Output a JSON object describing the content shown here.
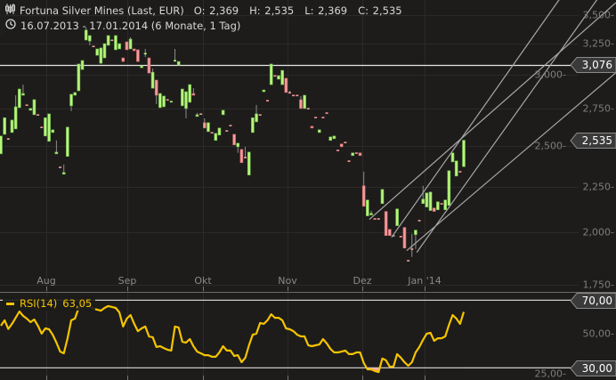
{
  "header": {
    "title": "Fortuna Silver Mines (Last, EUR)",
    "ohlc": [
      {
        "label": "O:",
        "value": "2,369"
      },
      {
        "label": "H:",
        "value": "2,535"
      },
      {
        "label": "L:",
        "value": "2,369"
      },
      {
        "label": "C:",
        "value": "2,535"
      }
    ],
    "range": "16.07.2013 - 17.01.2014 (6 Monate, 1 Tag)",
    "chart_icon": "candlestick-chart-icon",
    "time_icon": "clock-icon"
  },
  "price_axis": {
    "scale": "log",
    "ticks": [
      "3,500",
      "3,250",
      "3,000",
      "2,750",
      "2,500",
      "2,250",
      "2,000",
      "1,750"
    ],
    "reference_line": "3,076",
    "last_price": "2,535"
  },
  "x_axis": {
    "labels": [
      "Aug",
      "Sep",
      "Okt",
      "Nov",
      "Dez",
      "Jan '14"
    ]
  },
  "rsi": {
    "label": "RSI(14)",
    "value": "63,05",
    "ticks": [
      "50,00",
      "25,00"
    ],
    "upper": "70,00",
    "lower": "30,00"
  },
  "colors": {
    "background": "#1d1c1b",
    "up": "#b7f57d",
    "up_border": "#6fb84a",
    "down": "#f69a9a",
    "down_border": "#c56464",
    "rsi": "#f5c400",
    "oversold_fill": "#f0a8a8",
    "trendline": "#a8a8a8",
    "reference_line": "#e6e6e6"
  },
  "chart_data": {
    "type": "candlestick",
    "yscale": "log",
    "ylim": [
      1.7,
      3.6
    ],
    "grid": true,
    "ohlc": [
      [
        2.448,
        2.563,
        2.448,
        2.563
      ],
      [
        2.574,
        2.686,
        2.574,
        2.686
      ],
      [
        2.545,
        2.545,
        2.545,
        2.545
      ],
      [
        2.586,
        2.67,
        2.586,
        2.67
      ],
      [
        2.61,
        2.846,
        2.61,
        2.763
      ],
      [
        2.757,
        2.892,
        2.757,
        2.892
      ],
      [
        2.846,
        2.925,
        2.846,
        2.859
      ],
      [
        2.776,
        2.776,
        2.776,
        2.776
      ],
      [
        2.738,
        2.751,
        2.738,
        2.751
      ],
      [
        2.707,
        2.814,
        2.707,
        2.814
      ],
      [
        2.707,
        2.707,
        2.707,
        2.707
      ],
      [
        2.622,
        2.622,
        2.622,
        2.622
      ],
      [
        2.563,
        2.686,
        2.563,
        2.686
      ],
      [
        2.528,
        2.713,
        2.528,
        2.713
      ],
      [
        2.586,
        2.604,
        2.586,
        2.604
      ],
      [
        2.448,
        2.534,
        2.448,
        2.459
      ],
      [
        2.366,
        2.366,
        2.366,
        2.366
      ],
      [
        2.323,
        2.382,
        2.323,
        2.333
      ],
      [
        2.432,
        2.622,
        2.432,
        2.622
      ],
      [
        2.77,
        2.853,
        2.732,
        2.853
      ],
      [
        2.846,
        2.866,
        2.846,
        2.866
      ],
      [
        2.879,
        3.084,
        2.879,
        3.084
      ],
      [
        3.041,
        3.112,
        3.041,
        3.112
      ],
      [
        3.28,
        3.39,
        3.28,
        3.365
      ],
      [
        3.272,
        3.318,
        3.236,
        3.318
      ],
      [
        3.229,
        3.229,
        3.229,
        3.229
      ],
      [
        3.154,
        3.206,
        3.154,
        3.206
      ],
      [
        3.09,
        3.214,
        3.09,
        3.214
      ],
      [
        3.133,
        3.25,
        3.133,
        3.25
      ],
      [
        3.236,
        3.318,
        3.236,
        3.318
      ],
      [
        3.28,
        3.28,
        3.28,
        3.28
      ],
      [
        3.199,
        3.318,
        3.199,
        3.318
      ],
      [
        3.206,
        3.25,
        3.206,
        3.25
      ],
      [
        3.133,
        3.133,
        3.104,
        3.104
      ],
      [
        3.265,
        3.265,
        3.199,
        3.199
      ],
      [
        3.206,
        3.303,
        3.206,
        3.288
      ],
      [
        3.206,
        3.206,
        3.191,
        3.191
      ],
      [
        3.199,
        3.199,
        3.104,
        3.104
      ],
      [
        3.055,
        3.069,
        3.055,
        3.069
      ],
      [
        3.165,
        3.206,
        3.14,
        3.169
      ],
      [
        3.133,
        3.133,
        3.013,
        3.013
      ],
      [
        2.898,
        3.048,
        2.898,
        3.02
      ],
      [
        2.959,
        2.959,
        2.782,
        2.846
      ],
      [
        2.757,
        2.859,
        2.757,
        2.859
      ],
      [
        2.763,
        2.84,
        2.763,
        2.84
      ],
      [
        2.814,
        2.814,
        2.814,
        2.814
      ],
      [
        2.795,
        2.801,
        2.795,
        2.801
      ],
      [
        3.104,
        3.206,
        3.104,
        3.112
      ],
      [
        3.076,
        3.104,
        3.076,
        3.104
      ],
      [
        2.77,
        2.892,
        2.77,
        2.892
      ],
      [
        2.751,
        2.872,
        2.682,
        2.872
      ],
      [
        2.795,
        2.925,
        2.795,
        2.925
      ],
      [
        2.859,
        2.899,
        2.846,
        2.846
      ],
      [
        2.695,
        2.72,
        2.695,
        2.707
      ],
      [
        2.713,
        2.713,
        2.713,
        2.713
      ],
      [
        2.652,
        2.682,
        2.616,
        2.616
      ],
      [
        2.592,
        2.652,
        2.592,
        2.652
      ],
      [
        2.586,
        2.586,
        2.586,
        2.586
      ],
      [
        2.534,
        2.58,
        2.534,
        2.58
      ],
      [
        2.569,
        2.616,
        2.569,
        2.616
      ],
      [
        2.707,
        2.738,
        2.707,
        2.738
      ],
      [
        2.598,
        2.598,
        2.598,
        2.598
      ],
      [
        2.634,
        2.634,
        2.634,
        2.634
      ],
      [
        2.574,
        2.574,
        2.505,
        2.505
      ],
      [
        2.493,
        2.516,
        2.454,
        2.516
      ],
      [
        2.476,
        2.476,
        2.393,
        2.393
      ],
      [
        2.426,
        2.493,
        2.42,
        2.426
      ],
      [
        2.318,
        2.459,
        2.318,
        2.459
      ],
      [
        2.586,
        2.686,
        2.586,
        2.686
      ],
      [
        2.658,
        2.776,
        2.658,
        2.713
      ],
      [
        2.707,
        2.707,
        2.707,
        2.707
      ],
      [
        2.872,
        2.885,
        2.872,
        2.885
      ],
      [
        2.808,
        2.808,
        2.808,
        2.808
      ],
      [
        2.925,
        3.084,
        2.925,
        3.084
      ],
      [
        2.993,
        2.993,
        2.993,
        2.993
      ],
      [
        2.966,
        2.993,
        2.966,
        2.993
      ],
      [
        2.925,
        3.034,
        2.925,
        3.034
      ],
      [
        2.973,
        2.973,
        2.866,
        2.866
      ],
      [
        2.866,
        2.879,
        2.866,
        2.866
      ],
      [
        2.846,
        2.846,
        2.846,
        2.846
      ],
      [
        2.846,
        2.846,
        2.846,
        2.846
      ],
      [
        2.814,
        2.84,
        2.751,
        2.751
      ],
      [
        2.751,
        2.846,
        2.751,
        2.846
      ],
      [
        2.751,
        2.751,
        2.751,
        2.751
      ],
      [
        2.628,
        2.628,
        2.616,
        2.616
      ],
      [
        2.689,
        2.689,
        2.689,
        2.689
      ],
      [
        2.586,
        2.604,
        2.586,
        2.604
      ],
      [
        2.689,
        2.689,
        2.689,
        2.689
      ],
      [
        2.72,
        2.72,
        2.72,
        2.72
      ],
      [
        2.534,
        2.557,
        2.534,
        2.557
      ],
      [
        2.545,
        2.563,
        2.545,
        2.563
      ],
      [
        2.471,
        2.471,
        2.471,
        2.471
      ],
      [
        2.511,
        2.511,
        2.493,
        2.493
      ],
      [
        2.522,
        2.522,
        2.522,
        2.522
      ],
      [
        2.404,
        2.404,
        2.404,
        2.404
      ],
      [
        2.437,
        2.454,
        2.437,
        2.454
      ],
      [
        2.454,
        2.454,
        2.454,
        2.454
      ],
      [
        2.454,
        2.454,
        2.437,
        2.437
      ],
      [
        2.255,
        2.339,
        2.139,
        2.139
      ],
      [
        2.087,
        2.174,
        2.087,
        2.174
      ],
      [
        2.092,
        2.115,
        2.092,
        2.101
      ],
      [
        2.072,
        2.072,
        2.072,
        2.072
      ],
      [
        2.072,
        2.072,
        2.072,
        2.072
      ],
      [
        2.154,
        2.234,
        2.154,
        2.234
      ],
      [
        2.111,
        2.111,
        1.984,
        1.984
      ],
      [
        2.016,
        2.016,
        1.984,
        1.984
      ],
      [
        1.984,
        1.984,
        1.984,
        1.984
      ],
      [
        2.035,
        2.125,
        2.035,
        2.125
      ],
      [
        1.98,
        1.98,
        1.98,
        1.98
      ],
      [
        2.026,
        2.026,
        1.921,
        1.921
      ],
      [
        1.861,
        1.861,
        1.861,
        1.861
      ],
      [
        1.917,
        1.993,
        1.878,
        1.917
      ],
      [
        1.989,
        2.012,
        1.917,
        2.012
      ],
      [
        2.063,
        2.063,
        2.063,
        2.063
      ],
      [
        2.154,
        2.255,
        2.154,
        2.179
      ],
      [
        2.135,
        2.214,
        2.135,
        2.214
      ],
      [
        2.116,
        2.219,
        2.116,
        2.219
      ],
      [
        2.13,
        2.13,
        2.111,
        2.111
      ],
      [
        2.12,
        2.164,
        2.12,
        2.164
      ],
      [
        2.154,
        2.154,
        2.154,
        2.154
      ],
      [
        2.12,
        2.174,
        2.12,
        2.174
      ],
      [
        2.144,
        2.344,
        2.144,
        2.344
      ],
      [
        2.398,
        2.454,
        2.398,
        2.454
      ],
      [
        2.312,
        2.404,
        2.312,
        2.404
      ],
      [
        2.339,
        2.339,
        2.339,
        2.339
      ],
      [
        2.369,
        2.535,
        2.369,
        2.535
      ]
    ],
    "trendlines": [
      {
        "from": [
          99.5,
          2.068
        ],
        "to": [
          122.4,
          2.505
        ]
      },
      {
        "from": [
          105.5,
          1.975
        ],
        "to": [
          124.8,
          2.563
        ]
      },
      {
        "from": [
          109.6,
          1.909
        ],
        "to": [
          124.8,
          2.159
        ]
      },
      {
        "from": [
          112.3,
          1.9
        ],
        "to": [
          124.8,
          2.245
        ]
      }
    ],
    "rsi": {
      "period": 14,
      "ylim": [
        25,
        72
      ],
      "levels": [
        70,
        30
      ],
      "values": [
        54.9,
        58.1,
        53.0,
        56.0,
        59.6,
        63.3,
        60.7,
        59.1,
        57.0,
        58.6,
        54.9,
        50.2,
        53.3,
        52.8,
        49.6,
        44.9,
        39.6,
        38.6,
        47.5,
        58.1,
        59.1,
        65.4,
        68.0,
        68.6,
        66.5,
        64.9,
        64.4,
        63.8,
        65.4,
        66.5,
        66.0,
        65.4,
        62.8,
        54.4,
        59.1,
        61.2,
        56.0,
        51.7,
        53.3,
        54.4,
        48.6,
        48.1,
        42.3,
        42.8,
        41.7,
        40.7,
        40.2,
        54.4,
        53.8,
        45.4,
        44.9,
        47.0,
        42.8,
        39.6,
        38.6,
        37.5,
        37.5,
        36.5,
        36.5,
        39.1,
        42.8,
        40.2,
        40.2,
        37.0,
        37.5,
        33.3,
        36.0,
        43.3,
        49.6,
        50.2,
        56.5,
        56.0,
        58.1,
        61.7,
        59.6,
        59.6,
        58.1,
        53.3,
        52.8,
        51.7,
        49.6,
        48.6,
        48.6,
        43.3,
        42.8,
        43.3,
        43.8,
        47.0,
        44.4,
        41.2,
        39.1,
        39.1,
        39.6,
        40.2,
        38.1,
        38.1,
        39.1,
        39.1,
        32.8,
        29.1,
        29.1,
        28.1,
        27.5,
        35.5,
        34.4,
        30.7,
        30.7,
        38.1,
        36.0,
        33.3,
        31.2,
        33.3,
        39.1,
        42.3,
        46.5,
        50.2,
        50.7,
        46.0,
        47.5,
        47.5,
        48.6,
        55.4,
        61.2,
        59.1,
        56.0,
        63.05
      ]
    }
  }
}
